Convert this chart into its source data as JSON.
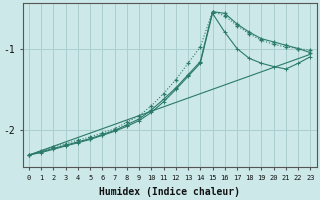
{
  "background_color": "#cce8e8",
  "grid_color": "#aacfcf",
  "line_color": "#2a7a6a",
  "xlabel": "Humidex (Indice chaleur)",
  "yticks": [
    -2,
    -1
  ],
  "xticks": [
    0,
    1,
    2,
    3,
    4,
    5,
    6,
    7,
    8,
    9,
    10,
    11,
    12,
    13,
    14,
    15,
    16,
    17,
    18,
    19,
    20,
    21,
    22,
    23
  ],
  "xlim": [
    -0.5,
    23.5
  ],
  "ylim": [
    -2.45,
    -0.45
  ],
  "series1_x": [
    0,
    1,
    2,
    3,
    4,
    5,
    6,
    7,
    8,
    9,
    10,
    11,
    12,
    13,
    14,
    15,
    16,
    17,
    18,
    19,
    20,
    21,
    22,
    23
  ],
  "series1_y": [
    -2.3,
    -2.25,
    -2.2,
    -2.16,
    -2.12,
    -2.08,
    -2.03,
    -1.98,
    -1.9,
    -1.82,
    -1.7,
    -1.55,
    -1.38,
    -1.18,
    -0.98,
    -0.55,
    -0.6,
    -0.72,
    -0.82,
    -0.9,
    -0.95,
    -0.98,
    -1.0,
    -1.02
  ],
  "series2_x": [
    0,
    1,
    2,
    3,
    4,
    5,
    6,
    7,
    8,
    9,
    10,
    11,
    12,
    13,
    14,
    15,
    16,
    17,
    18,
    19,
    20,
    21,
    22,
    23
  ],
  "series2_y": [
    -2.3,
    -2.26,
    -2.22,
    -2.18,
    -2.14,
    -2.1,
    -2.05,
    -2.0,
    -1.93,
    -1.86,
    -1.75,
    -1.62,
    -1.48,
    -1.32,
    -1.16,
    -0.55,
    -0.57,
    -0.7,
    -0.8,
    -0.88,
    -0.92,
    -0.96,
    -1.0,
    -1.05
  ],
  "series3_x": [
    0,
    1,
    2,
    3,
    4,
    5,
    6,
    7,
    8,
    9,
    10,
    11,
    12,
    13,
    14,
    15,
    16,
    17,
    18,
    19,
    20,
    21,
    22,
    23
  ],
  "series3_y": [
    -2.3,
    -2.27,
    -2.23,
    -2.19,
    -2.15,
    -2.11,
    -2.06,
    -2.01,
    -1.95,
    -1.88,
    -1.78,
    -1.65,
    -1.5,
    -1.34,
    -1.18,
    -0.57,
    -0.8,
    -1.0,
    -1.12,
    -1.18,
    -1.22,
    -1.25,
    -1.18,
    -1.1
  ],
  "series4_x": [
    0,
    23
  ],
  "series4_y": [
    -2.3,
    -1.07
  ]
}
